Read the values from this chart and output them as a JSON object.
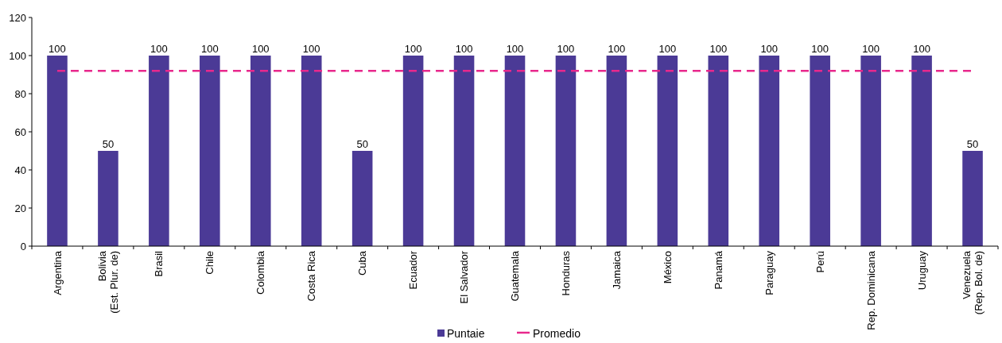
{
  "chart_data": {
    "type": "bar",
    "categories": [
      "Argentina",
      "Bolivia\n(Est. Plur. de)",
      "Brasil",
      "Chile",
      "Colombia",
      "Costa Rica",
      "Cuba",
      "Ecuador",
      "El Salvador",
      "Guatemala",
      "Honduras",
      "Jamaica",
      "México",
      "Panamá",
      "Paraguay",
      "Perú",
      "Rep. Dominicana",
      "Uruguay",
      "Venezuela\n(Rep. Bol. de)"
    ],
    "series": [
      {
        "name": "Puntaie",
        "color": "#4b3a96",
        "values": [
          100,
          50,
          100,
          100,
          100,
          100,
          50,
          100,
          100,
          100,
          100,
          100,
          100,
          100,
          100,
          100,
          100,
          100,
          50
        ],
        "value_labels": [
          "100",
          "50",
          "100",
          "100",
          "100",
          "100",
          "50",
          "100",
          "100",
          "100",
          "100",
          "100",
          "100",
          "100",
          "100",
          "100",
          "100",
          "100",
          "50"
        ]
      },
      {
        "name": "Promedio",
        "type": "line",
        "color": "#e8288c",
        "line_style": "dashed",
        "values": [
          92,
          92,
          92,
          92,
          92,
          92,
          92,
          92,
          92,
          92,
          92,
          92,
          92,
          92,
          92,
          92,
          92,
          92,
          92
        ]
      }
    ],
    "ylim": [
      0,
      120
    ],
    "yticks": [
      0,
      20,
      40,
      60,
      80,
      100,
      120
    ],
    "grid": false,
    "legend": "bottom"
  }
}
